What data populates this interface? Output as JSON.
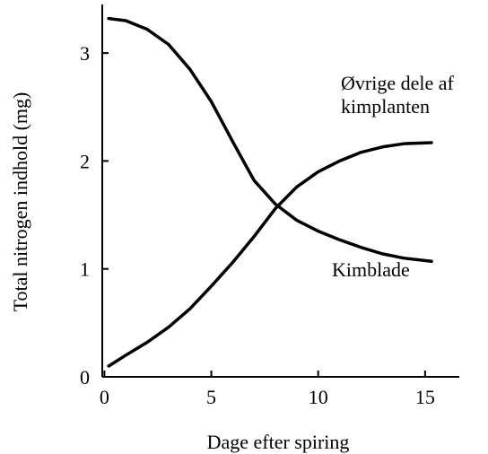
{
  "chart_data": {
    "type": "line",
    "x_label": "Dage efter spiring",
    "y_label": "Total nitrogen indhold (mg)",
    "xlim": [
      -0.1,
      16.6
    ],
    "xticks": [
      0,
      5,
      10,
      15
    ],
    "ylim": [
      0,
      3.45
    ],
    "yticks": [
      0,
      1,
      2,
      3
    ],
    "series": [
      {
        "name": "Kimblade",
        "color": "#000000",
        "x": [
          0.2,
          1,
          2,
          3,
          4,
          5,
          6,
          7,
          8,
          9,
          10,
          11,
          12,
          13,
          14,
          15.3
        ],
        "values": [
          3.32,
          3.3,
          3.22,
          3.08,
          2.85,
          2.55,
          2.18,
          1.82,
          1.6,
          1.45,
          1.35,
          1.27,
          1.2,
          1.14,
          1.1,
          1.07
        ]
      },
      {
        "name": "Øvrige dele af kimplanten",
        "color": "#000000",
        "x": [
          0.2,
          1,
          2,
          3,
          4,
          5,
          6,
          7,
          8,
          9,
          10,
          11,
          12,
          13,
          14,
          15.3
        ],
        "values": [
          0.1,
          0.2,
          0.32,
          0.46,
          0.63,
          0.84,
          1.06,
          1.3,
          1.56,
          1.76,
          1.9,
          2.0,
          2.08,
          2.13,
          2.16,
          2.17
        ]
      }
    ]
  }
}
